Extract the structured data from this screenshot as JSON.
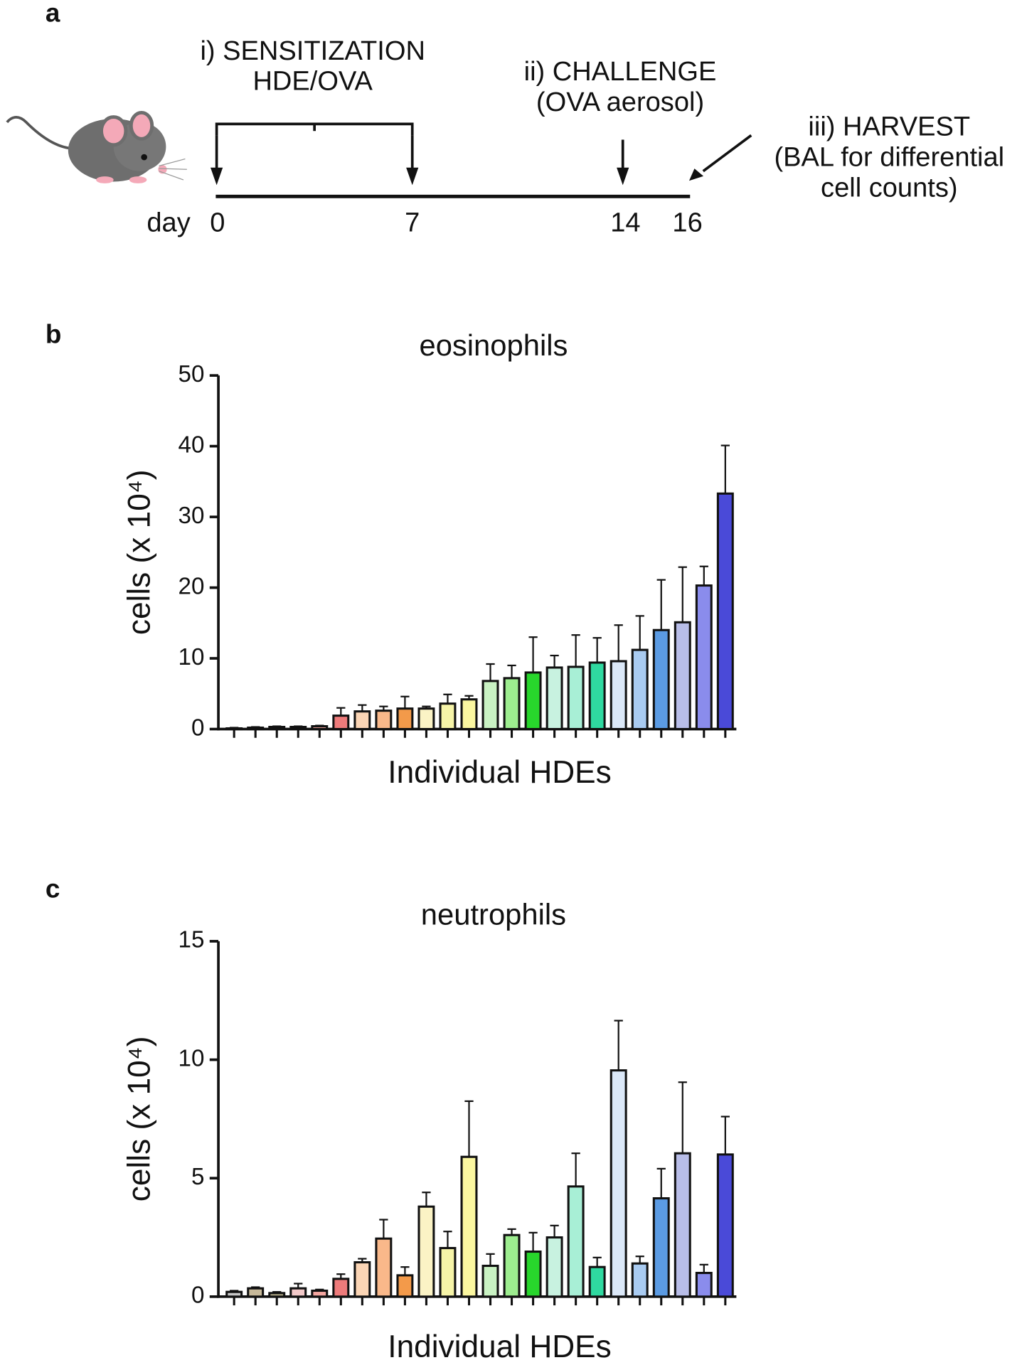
{
  "diagram": {
    "panel": "a",
    "steps": [
      {
        "lines": [
          "i) SENSITIZATION",
          "HDE/OVA"
        ]
      },
      {
        "lines": [
          "ii) CHALLENGE",
          "(OVA aerosol)"
        ]
      },
      {
        "lines": [
          "iii) HARVEST",
          "(BAL for differential",
          "cell counts)"
        ]
      }
    ],
    "axis_label": "day",
    "days": [
      0,
      7,
      14,
      16
    ]
  },
  "chart_data": [
    {
      "type": "bar",
      "panel": "b",
      "title": "eosinophils",
      "y_label": "cells (x 10⁴)",
      "x_label": "Individual HDEs",
      "categories": [
        null,
        null,
        null,
        null,
        null,
        null,
        null,
        null,
        null,
        null,
        null,
        null,
        null,
        null,
        null,
        null,
        null,
        null,
        null,
        null,
        null,
        null,
        null,
        null
      ],
      "values": [
        0.1,
        0.2,
        0.3,
        0.3,
        0.4,
        1.9,
        2.5,
        2.6,
        2.9,
        2.9,
        3.6,
        4.2,
        6.8,
        7.2,
        8.0,
        8.7,
        8.8,
        9.4,
        9.6,
        11.2,
        14.0,
        15.1,
        20.3,
        33.3
      ],
      "errors": [
        0.1,
        0.1,
        0.1,
        0.1,
        0.1,
        1.1,
        0.9,
        0.6,
        1.7,
        0.3,
        1.3,
        0.5,
        2.4,
        1.8,
        5.0,
        1.7,
        4.5,
        3.5,
        5.1,
        4.8,
        7.1,
        7.8,
        2.7,
        6.8
      ],
      "colors": [
        "#c8c8c8",
        "#c7b99a",
        "#b8b08a",
        "#f2c9c9",
        "#f4a6a0",
        "#ee7b7b",
        "#fbd5b5",
        "#f9b88a",
        "#f39a4a",
        "#fbf3c5",
        "#f6f4a8",
        "#fbf7a0",
        "#c9f2c3",
        "#9ded8f",
        "#28d62c",
        "#c8f2e0",
        "#a8efd6",
        "#2fd9a0",
        "#dbe8f8",
        "#a9cbf1",
        "#5b9be3",
        "#b8bde8",
        "#8a8cec",
        "#4a4ad8"
      ],
      "ylim": [
        0,
        50
      ],
      "yticks": [
        0,
        10,
        20,
        30,
        40,
        50
      ]
    },
    {
      "type": "bar",
      "panel": "c",
      "title": "neutrophils",
      "y_label": "cells (x 10⁴)",
      "x_label": "Individual HDEs",
      "categories": [
        null,
        null,
        null,
        null,
        null,
        null,
        null,
        null,
        null,
        null,
        null,
        null,
        null,
        null,
        null,
        null,
        null,
        null,
        null,
        null,
        null,
        null,
        null,
        null
      ],
      "values": [
        0.2,
        0.35,
        0.15,
        0.35,
        0.25,
        0.75,
        1.45,
        2.45,
        0.9,
        3.8,
        2.05,
        5.9,
        1.3,
        2.6,
        1.9,
        2.5,
        4.65,
        1.25,
        9.55,
        1.4,
        4.15,
        6.05,
        1.0,
        6.0
      ],
      "errors": [
        0.05,
        0.05,
        0.05,
        0.2,
        0.05,
        0.2,
        0.15,
        0.8,
        0.35,
        0.6,
        0.7,
        2.35,
        0.5,
        0.25,
        0.8,
        0.5,
        1.4,
        0.4,
        2.1,
        0.3,
        1.25,
        3.0,
        0.35,
        1.6
      ],
      "colors": [
        "#c8c8c8",
        "#c7b99a",
        "#b8b08a",
        "#f2c9c9",
        "#f4a6a0",
        "#ee7b7b",
        "#fbd5b5",
        "#f9b88a",
        "#f39a4a",
        "#fbf3c5",
        "#f6f4a8",
        "#fbf7a0",
        "#c9f2c3",
        "#9ded8f",
        "#28d62c",
        "#c8f2e0",
        "#a8efd6",
        "#2fd9a0",
        "#dbe8f8",
        "#a9cbf1",
        "#5b9be3",
        "#b8bde8",
        "#8a8cec",
        "#4a4ad8"
      ],
      "ylim": [
        0,
        15
      ],
      "yticks": [
        0,
        5,
        10,
        15
      ]
    }
  ]
}
